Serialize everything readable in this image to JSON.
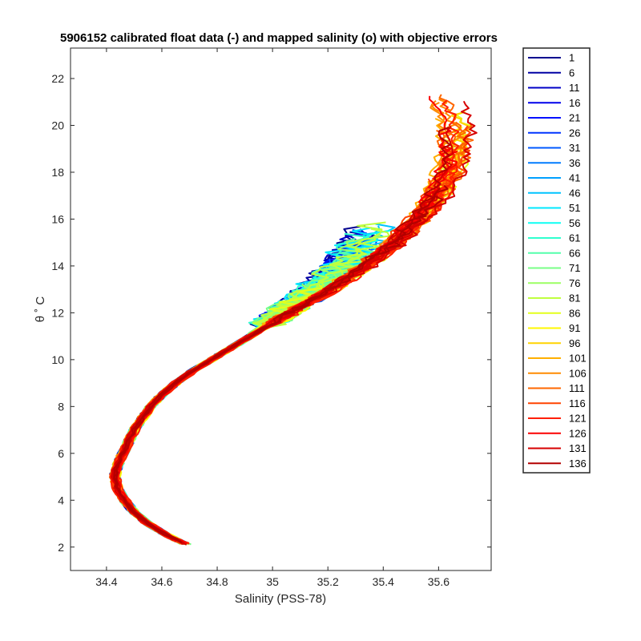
{
  "chart_data": {
    "type": "line",
    "title": "5906152 calibrated float data (-) and mapped salinity (o) with objective errors",
    "xlabel": "Salinity (PSS-78)",
    "ylabel": "θ ˚ C",
    "xlim": [
      34.27,
      35.79
    ],
    "ylim": [
      1.0,
      23.3
    ],
    "xticks": [
      "34.4",
      "34.6",
      "34.8",
      "35",
      "35.2",
      "35.4",
      "35.6"
    ],
    "yticks": [
      "2",
      "4",
      "6",
      "8",
      "10",
      "12",
      "14",
      "16",
      "18",
      "20",
      "22"
    ],
    "grid": false,
    "legend_position": "outside-right",
    "legend": [
      "1",
      "6",
      "11",
      "16",
      "21",
      "26",
      "31",
      "36",
      "41",
      "46",
      "51",
      "56",
      "61",
      "66",
      "71",
      "76",
      "81",
      "86",
      "91",
      "96",
      "101",
      "106",
      "111",
      "116",
      "121",
      "126",
      "131",
      "136"
    ],
    "legend_colors": [
      "#00008f",
      "#0000a3",
      "#0000c7",
      "#0000eb",
      "#0010ff",
      "#0034ff",
      "#0058ff",
      "#007cff",
      "#00a0ff",
      "#00c4ff",
      "#00e8ff",
      "#0cfff3",
      "#30ffcf",
      "#54ffab",
      "#78ff87",
      "#9cff63",
      "#c0ff3f",
      "#e4ff1b",
      "#fff700",
      "#ffd300",
      "#ffaf00",
      "#ff8b00",
      "#ff6700",
      "#ff4300",
      "#ff1f00",
      "#fb0000",
      "#d70000",
      "#b30000"
    ],
    "series_mean": {
      "theta": [
        2.1,
        2.5,
        3.0,
        3.5,
        4.0,
        4.5,
        5.0,
        5.5,
        6.0,
        6.5,
        7.0,
        7.5,
        8.0,
        8.5,
        9.0,
        9.5,
        10.0,
        10.5,
        11.0,
        11.5,
        12.0,
        12.5,
        13.0,
        13.5,
        14.0,
        14.5,
        15.0,
        15.5,
        16.0,
        16.5,
        17.0,
        17.5,
        18.0,
        18.5,
        19.0,
        19.5,
        20.0,
        20.5,
        21.0,
        21.5,
        22.0
      ],
      "salinity": [
        34.69,
        34.62,
        34.55,
        34.5,
        34.465,
        34.44,
        34.43,
        34.44,
        34.46,
        34.48,
        34.5,
        34.53,
        34.56,
        34.6,
        34.65,
        34.71,
        34.78,
        34.85,
        34.92,
        34.99,
        35.06,
        35.13,
        35.2,
        35.26,
        35.32,
        35.37,
        35.42,
        35.46,
        35.5,
        35.53,
        35.56,
        35.58,
        35.6,
        35.61,
        35.61,
        35.61,
        35.6,
        35.58,
        35.56,
        35.53,
        35.5
      ]
    }
  }
}
